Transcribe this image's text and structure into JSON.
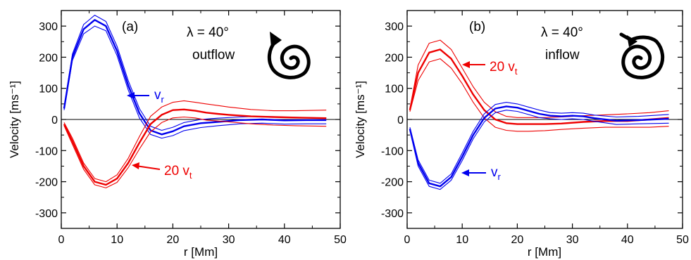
{
  "colors": {
    "vr": "#0000ee",
    "vt": "#ee0000",
    "axis": "#000000"
  },
  "chart_data": [
    {
      "type": "line",
      "panel_label": "(a)",
      "annotation_lines": [
        "λ = 40°",
        "outflow"
      ],
      "icon": "spiral-clockwise-outward-arrow-icon",
      "xlabel": "r [Mm]",
      "ylabel": "Velocity [ms⁻¹]",
      "xlim": [
        0,
        50
      ],
      "ylim": [
        -350,
        350
      ],
      "xticks": [
        0,
        10,
        20,
        30,
        40,
        50
      ],
      "yticks": [
        -300,
        -200,
        -100,
        0,
        100,
        200,
        300
      ],
      "zero_line": true,
      "series": [
        {
          "name": "vr",
          "label_main": "v",
          "label_sub": "r",
          "color": "#0000ee",
          "x": [
            0.5,
            2,
            4,
            6,
            8,
            10,
            12,
            14,
            16,
            18,
            20,
            22,
            25,
            28,
            32,
            36,
            40,
            44,
            47.5
          ],
          "y": [
            35,
            200,
            290,
            320,
            300,
            220,
            110,
            20,
            -35,
            -48,
            -38,
            -22,
            -12,
            -8,
            -2,
            0,
            -3,
            -2,
            -2
          ],
          "upper": [
            40,
            210,
            305,
            335,
            315,
            235,
            125,
            35,
            -22,
            -35,
            -25,
            -10,
            0,
            4,
            8,
            10,
            8,
            6,
            5
          ],
          "lower": [
            30,
            190,
            275,
            300,
            285,
            205,
            95,
            5,
            -48,
            -60,
            -52,
            -36,
            -26,
            -20,
            -14,
            -12,
            -15,
            -14,
            -14
          ]
        },
        {
          "name": "20 vt",
          "label_main": "20 v",
          "label_sub": "t",
          "color": "#ee0000",
          "x": [
            0.5,
            2,
            4,
            6,
            8,
            10,
            12,
            14,
            16,
            18,
            20,
            22,
            24,
            26,
            28,
            30,
            34,
            38,
            42,
            47.5
          ],
          "y": [
            -15,
            -70,
            -150,
            -200,
            -210,
            -190,
            -140,
            -75,
            -15,
            15,
            30,
            32,
            28,
            22,
            18,
            15,
            10,
            8,
            6,
            4
          ],
          "upper": [
            -10,
            -60,
            -140,
            -190,
            -200,
            -178,
            -125,
            -55,
            10,
            40,
            55,
            60,
            55,
            50,
            45,
            40,
            32,
            28,
            28,
            30
          ],
          "lower": [
            -20,
            -80,
            -160,
            -210,
            -220,
            -202,
            -155,
            -95,
            -40,
            -10,
            5,
            8,
            5,
            -2,
            -5,
            -8,
            -14,
            -18,
            -20,
            -22
          ]
        }
      ]
    },
    {
      "type": "line",
      "panel_label": "(b)",
      "annotation_lines": [
        "λ = 40°",
        "inflow"
      ],
      "icon": "spiral-counterclockwise-inward-arrow-icon",
      "xlabel": "r [Mm]",
      "ylabel": "Velocity [ms⁻¹]",
      "xlim": [
        0,
        50
      ],
      "ylim": [
        -350,
        350
      ],
      "xticks": [
        0,
        10,
        20,
        30,
        40,
        50
      ],
      "yticks": [
        -300,
        -200,
        -100,
        0,
        100,
        200,
        300
      ],
      "zero_line": true,
      "series": [
        {
          "name": "20 vt",
          "label_main": "20 v",
          "label_sub": "t",
          "color": "#ee0000",
          "x": [
            0.5,
            2,
            4,
            6,
            8,
            10,
            12,
            14,
            16,
            18,
            20,
            22,
            25,
            28,
            32,
            36,
            40,
            44,
            47.5
          ],
          "y": [
            30,
            150,
            215,
            225,
            195,
            140,
            80,
            30,
            0,
            -12,
            -15,
            -15,
            -15,
            -13,
            -8,
            -5,
            -5,
            0,
            5
          ],
          "upper": [
            35,
            175,
            245,
            255,
            225,
            165,
            105,
            55,
            25,
            10,
            6,
            6,
            6,
            8,
            12,
            15,
            18,
            22,
            28
          ],
          "lower": [
            25,
            125,
            185,
            195,
            165,
            115,
            55,
            5,
            -25,
            -35,
            -38,
            -38,
            -36,
            -32,
            -28,
            -25,
            -25,
            -25,
            -22
          ]
        },
        {
          "name": "vr",
          "label_main": "v",
          "label_sub": "r",
          "color": "#0000ee",
          "x": [
            0.5,
            2,
            4,
            6,
            8,
            10,
            12,
            14,
            16,
            18,
            20,
            22,
            24,
            26,
            28,
            30,
            32,
            34,
            38,
            42,
            47.5
          ],
          "y": [
            -30,
            -140,
            -205,
            -215,
            -185,
            -120,
            -50,
            5,
            35,
            42,
            38,
            28,
            18,
            12,
            10,
            12,
            10,
            4,
            -4,
            -2,
            2
          ],
          "upper": [
            -25,
            -130,
            -195,
            -205,
            -175,
            -108,
            -38,
            18,
            48,
            55,
            50,
            40,
            30,
            22,
            20,
            22,
            20,
            14,
            8,
            10,
            16
          ],
          "lower": [
            -35,
            -150,
            -215,
            -225,
            -195,
            -132,
            -62,
            -8,
            22,
            30,
            26,
            16,
            6,
            2,
            0,
            2,
            0,
            -6,
            -16,
            -14,
            -12
          ]
        }
      ]
    }
  ]
}
